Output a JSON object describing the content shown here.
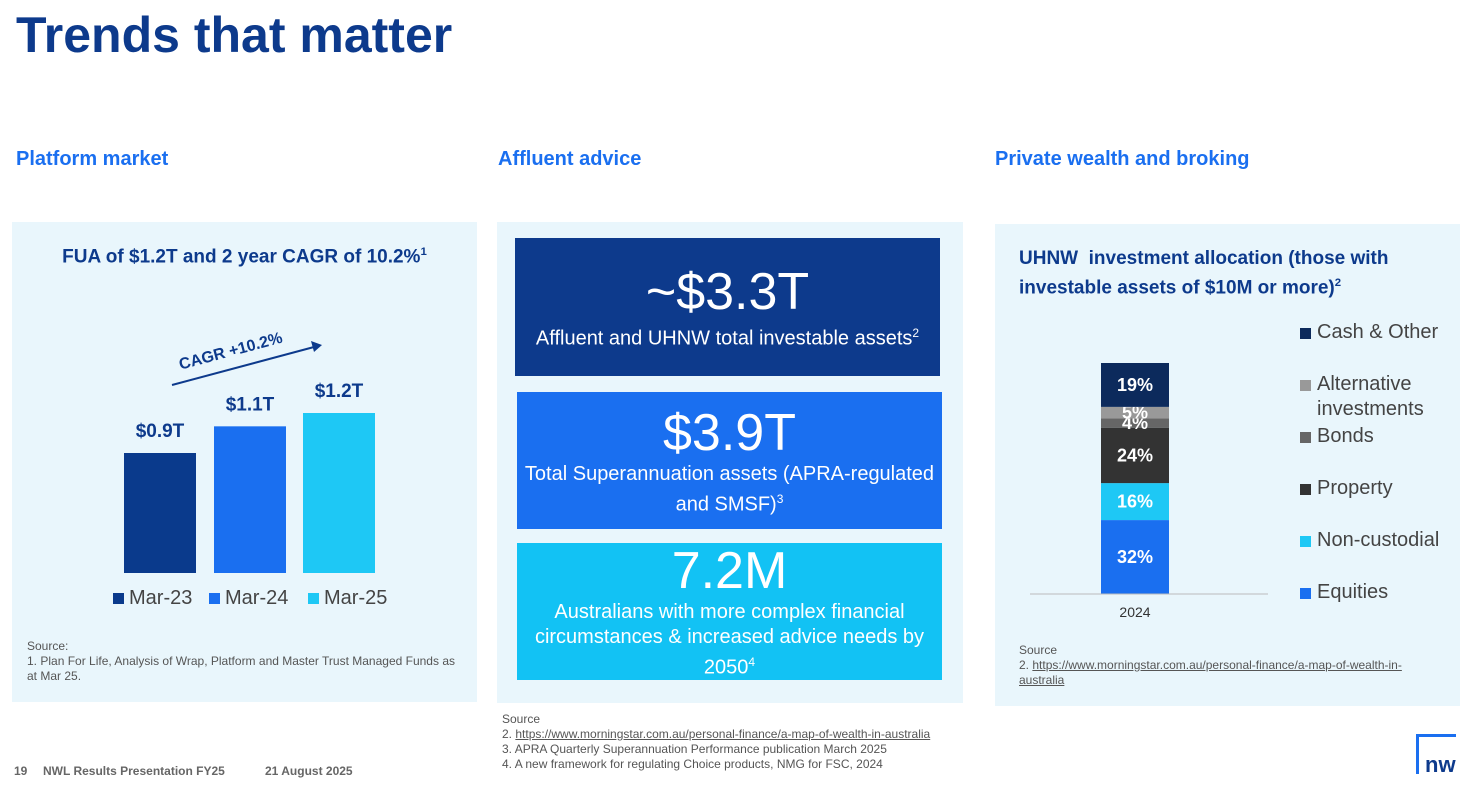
{
  "title": "Trends that matter",
  "sections": [
    {
      "heading": "Platform market",
      "source_label": "Source:",
      "sources": [
        {
          "num": "1.",
          "text": "Plan For Life, Analysis of Wrap, Platform and Master Trust Managed Funds as at Mar 25."
        }
      ]
    },
    {
      "heading": "Affluent advice",
      "stats": [
        {
          "value": "~$3.3T",
          "label": "Affluent and UHNW total investable assets",
          "sup": "2",
          "color": "#0d3a8c"
        },
        {
          "value": "$3.9T",
          "label": "Total Superannuation assets (APRA-regulated and SMSF)",
          "sup": "3",
          "color": "#1a6ff0"
        },
        {
          "value": "7.2M",
          "label": "Australians with more complex financial circumstances & increased advice needs by 2050",
          "sup": "4",
          "color": "#12c2f4"
        }
      ],
      "source_label": "Source",
      "sources": [
        {
          "num": "2.",
          "link": "https://www.morningstar.com.au/personal-finance/a-map-of-wealth-in-australia"
        },
        {
          "num": "3.",
          "text": "APRA Quarterly Superannuation Performance publication March 2025"
        },
        {
          "num": "4.",
          "text": "A new framework for regulating Choice products, NMG for FSC, 2024"
        }
      ]
    },
    {
      "heading": "Private wealth and broking",
      "source_label": "Source",
      "sources": [
        {
          "num": "2.",
          "link": "https://www.morningstar.com.au/personal-finance/a-map-of-wealth-in-australia"
        }
      ]
    }
  ],
  "chart_data": [
    {
      "type": "bar",
      "title": "FUA of $1.2T and 2 year CAGR of 10.2%",
      "title_sup": "1",
      "annotation": "CAGR +10.2%",
      "categories": [
        "Mar-23",
        "Mar-24",
        "Mar-25"
      ],
      "values": [
        0.9,
        1.1,
        1.2
      ],
      "value_labels": [
        "$0.9T",
        "$1.1T",
        "$1.2T"
      ],
      "colors": [
        "#0a3a8c",
        "#1a6ff0",
        "#1ec8f5"
      ]
    },
    {
      "type": "stacked_bar",
      "title": "UHNW  investment allocation (those with investable assets of $10M or more)",
      "title_sup": "2",
      "categories": [
        "2024"
      ],
      "series": [
        {
          "name": "Equities",
          "color": "#1a6ff0",
          "values": [
            32
          ],
          "value_labels": [
            "32%"
          ]
        },
        {
          "name": "Non-custodial",
          "color": "#1ec8f5",
          "values": [
            16
          ],
          "value_labels": [
            "16%"
          ]
        },
        {
          "name": "Property",
          "color": "#333333",
          "values": [
            24
          ],
          "value_labels": [
            "24%"
          ]
        },
        {
          "name": "Bonds",
          "color": "#666666",
          "values": [
            4
          ],
          "value_labels": [
            "4%"
          ]
        },
        {
          "name": "Alternative investments",
          "color": "#999999",
          "values": [
            5
          ],
          "value_labels": [
            "5%"
          ]
        },
        {
          "name": "Cash & Other",
          "color": "#0c2a5c",
          "values": [
            19
          ],
          "value_labels": [
            "19%"
          ]
        }
      ]
    }
  ],
  "footer": {
    "page": "19",
    "presentation": "NWL Results Presentation FY25",
    "date": "21 August 2025",
    "logo": "nw"
  }
}
